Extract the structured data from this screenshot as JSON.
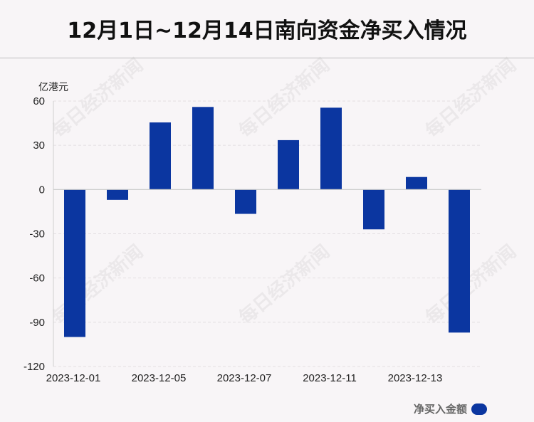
{
  "title": "12月1日~12月14日南向资金净买入情况",
  "watermark": "每日经济新闻",
  "legend": {
    "label": "净买入金额",
    "color": "#0b36a0"
  },
  "chart_data": {
    "type": "bar",
    "unit": "亿港元",
    "x": [
      "2023-12-01",
      "2023-12-04",
      "2023-12-05",
      "2023-12-06",
      "2023-12-07",
      "2023-12-08",
      "2023-12-11",
      "2023-12-12",
      "2023-12-13",
      "2023-12-14"
    ],
    "x_tick_labels": [
      "2023-12-01",
      "2023-12-05",
      "2023-12-07",
      "2023-12-11",
      "2023-12-13"
    ],
    "values": [
      -100,
      -7,
      45.5,
      56,
      -16.5,
      33.5,
      55.5,
      -27,
      8.5,
      -97
    ],
    "ylim": [
      -120,
      60
    ],
    "yticks": [
      60,
      30,
      0,
      -30,
      -60,
      -90,
      -120
    ],
    "grid": true,
    "legend_position": "bottom-right",
    "series": [
      {
        "name": "净买入金额",
        "color": "#0b36a0"
      }
    ]
  }
}
